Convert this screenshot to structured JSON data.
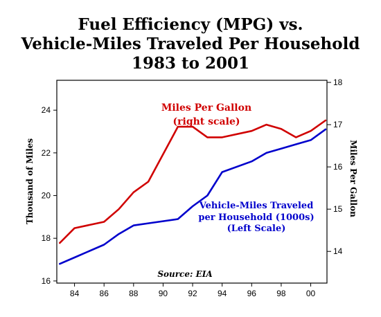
{
  "chart_data": {
    "type": "line",
    "title_lines": [
      "Fuel Efficiency (MPG) vs.",
      "Vehicle-Miles Traveled Per Household",
      "1983 to 2001"
    ],
    "x": [
      1983,
      1984,
      1986,
      1987,
      1988,
      1989,
      1991,
      1992,
      1993,
      1994,
      1996,
      1997,
      1998,
      1999,
      2000,
      2001
    ],
    "x_ticks": [
      {
        "value": 1984,
        "label": "84"
      },
      {
        "value": 1986,
        "label": "86"
      },
      {
        "value": 1988,
        "label": "88"
      },
      {
        "value": 1990,
        "label": "90"
      },
      {
        "value": 1992,
        "label": "92"
      },
      {
        "value": 1994,
        "label": "94"
      },
      {
        "value": 1996,
        "label": "96"
      },
      {
        "value": 1998,
        "label": "98"
      },
      {
        "value": 2000,
        "label": "00"
      }
    ],
    "xlim": [
      1982.8,
      2001.1
    ],
    "left_axis": {
      "label": "Thousand of Miles",
      "ylim": [
        15.9,
        25.4
      ],
      "ticks": [
        16,
        18,
        20,
        22,
        24
      ]
    },
    "right_axis": {
      "label": "Miles Per Gallon",
      "ylim": [
        13.25,
        18.05
      ],
      "ticks": [
        14,
        15,
        16,
        17,
        18
      ]
    },
    "series": [
      {
        "name": "Miles Per Gallon",
        "axis": "right",
        "color": "#d00000",
        "points": [
          [
            1983,
            14.2
          ],
          [
            1984,
            14.55
          ],
          [
            1986,
            14.7
          ],
          [
            1987,
            15.0
          ],
          [
            1988,
            15.4
          ],
          [
            1989,
            15.65
          ],
          [
            1991,
            16.95
          ],
          [
            1992,
            16.95
          ],
          [
            1993,
            16.7
          ],
          [
            1994,
            16.7
          ],
          [
            1996,
            16.85
          ],
          [
            1997,
            17.0
          ],
          [
            1998,
            16.9
          ],
          [
            1999,
            16.7
          ],
          [
            2000,
            16.85
          ],
          [
            2001,
            17.1
          ]
        ]
      },
      {
        "name": "Vehicle-Miles Traveled per Household (1000s)",
        "axis": "left",
        "color": "#0000cc",
        "points": [
          [
            1983,
            16.8
          ],
          [
            1984,
            17.1
          ],
          [
            1986,
            17.7
          ],
          [
            1987,
            18.2
          ],
          [
            1988,
            18.6
          ],
          [
            1989,
            18.7
          ],
          [
            1991,
            18.9
          ],
          [
            1992,
            19.5
          ],
          [
            1993,
            20.0
          ],
          [
            1994,
            21.1
          ],
          [
            1996,
            21.6
          ],
          [
            1997,
            22.0
          ],
          [
            1998,
            22.2
          ],
          [
            1999,
            22.4
          ],
          [
            2000,
            22.6
          ],
          [
            2001,
            23.1
          ]
        ]
      }
    ],
    "annotations": {
      "mpg_line1": "Miles Per Gallon",
      "mpg_line2": "(right scale)",
      "vmt_line1": "Vehicle-Miles Traveled",
      "vmt_line2": "per Household (1000s)",
      "vmt_line3": "(Left Scale)",
      "source": "Source: EIA"
    },
    "grid": false,
    "legend": "none"
  }
}
